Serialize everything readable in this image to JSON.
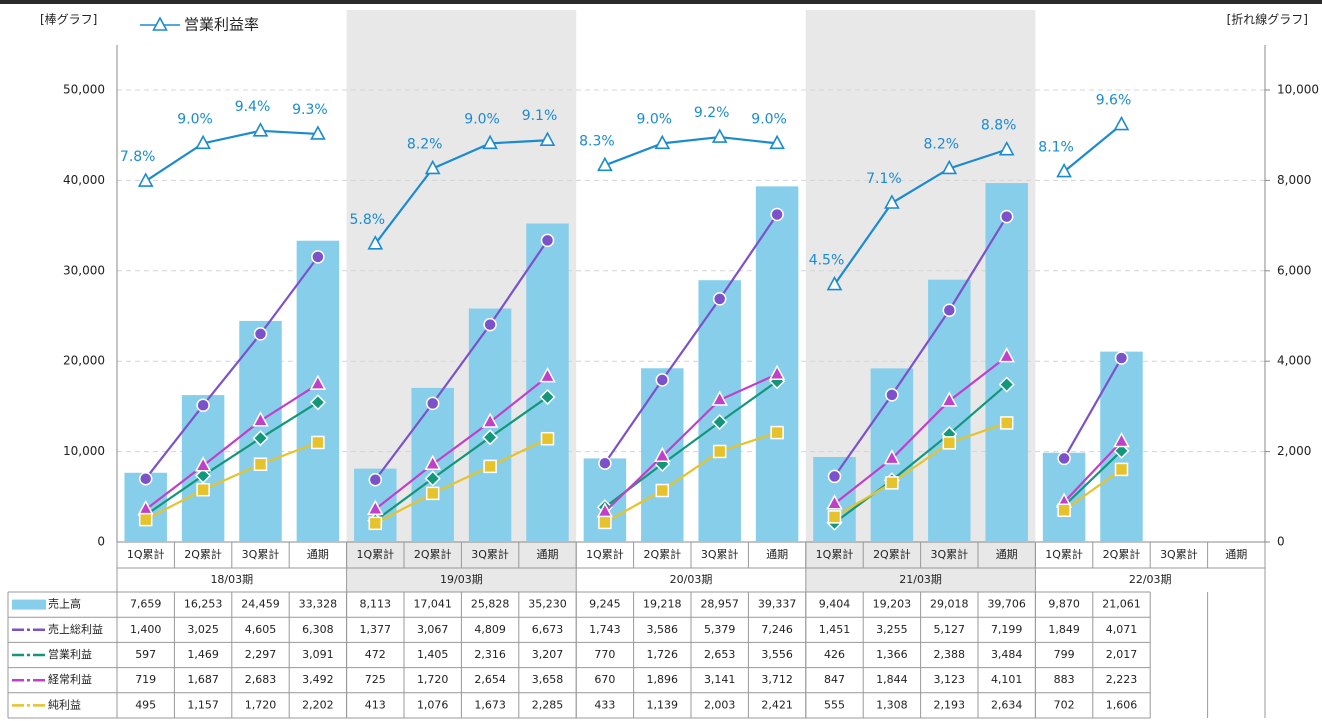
{
  "chart_data": {
    "type": "combo",
    "y_axis_title": "[棒グラフ]",
    "y2_axis_title": "[折れ線グラフ]",
    "groups": [
      "18/03期",
      "19/03期",
      "20/03期",
      "21/03期",
      "22/03期"
    ],
    "categories": [
      "1Q累計",
      "2Q累計",
      "3Q累計",
      "通期",
      "1Q累計",
      "2Q累計",
      "3Q累計",
      "通期",
      "1Q累計",
      "2Q累計",
      "3Q累計",
      "通期",
      "1Q累計",
      "2Q累計",
      "3Q累計",
      "通期",
      "1Q累計",
      "2Q累計",
      "3Q累計",
      "通期"
    ],
    "ylim": [
      0,
      50000
    ],
    "yticks": [
      0,
      {
        "value": 10000,
        "label": "10,000"
      },
      {
        "value": 20000,
        "label": "20,000"
      },
      {
        "value": 30000,
        "label": "30,000"
      },
      {
        "value": 40000,
        "label": "40,000"
      },
      {
        "value": 50000,
        "label": "50,000"
      }
    ],
    "y2lim": [
      0,
      10000
    ],
    "y2ticks": [
      0,
      {
        "value": 2000,
        "label": "2,000"
      },
      {
        "value": 4000,
        "label": "4,000"
      },
      {
        "value": 6000,
        "label": "6,000"
      },
      {
        "value": 8000,
        "label": "8,000"
      },
      {
        "value": 10000,
        "label": "10,000"
      }
    ],
    "y3lim": [
      -3.7,
      10.7
    ],
    "grid": true,
    "series": [
      {
        "name": "売上高",
        "type": "bar",
        "color": "#87ceeb",
        "values": [
          7659,
          16253,
          24459,
          33328,
          8113,
          17041,
          25828,
          35230,
          9245,
          19218,
          28957,
          39337,
          9404,
          19203,
          29018,
          39706,
          9870,
          21061,
          null,
          null
        ],
        "value_labels": [
          "7,659",
          "16,253",
          "24,459",
          "33,328",
          "8,113",
          "17,041",
          "25,828",
          "35,230",
          "9,245",
          "19,218",
          "28,957",
          "39,337",
          "9,404",
          "19,203",
          "29,018",
          "39,706",
          "9,870",
          "21,061",
          null,
          null
        ]
      },
      {
        "name": "売上総利益",
        "type": "line",
        "axis": "y2",
        "marker": "circle",
        "color": "#7b52c9",
        "values": [
          1400,
          3025,
          4605,
          6308,
          1377,
          3067,
          4809,
          6673,
          1743,
          3586,
          5379,
          7246,
          1451,
          3255,
          5127,
          7199,
          1849,
          4071,
          null,
          null
        ],
        "value_labels": [
          "1,400",
          "3,025",
          "4,605",
          "6,308",
          "1,377",
          "3,067",
          "4,809",
          "6,673",
          "1,743",
          "3,586",
          "5,379",
          "7,246",
          "1,451",
          "3,255",
          "5,127",
          "7,199",
          "1,849",
          "4,071",
          null,
          null
        ]
      },
      {
        "name": "営業利益",
        "type": "line",
        "axis": "y2",
        "marker": "diamond",
        "color": "#13977a",
        "values": [
          597,
          1469,
          2297,
          3091,
          472,
          1405,
          2316,
          3207,
          770,
          1726,
          2653,
          3556,
          426,
          1366,
          2388,
          3484,
          799,
          2017,
          null,
          null
        ],
        "value_labels": [
          "597",
          "1,469",
          "2,297",
          "3,091",
          "472",
          "1,405",
          "2,316",
          "3,207",
          "770",
          "1,726",
          "2,653",
          "3,556",
          "426",
          "1,366",
          "2,388",
          "3,484",
          "799",
          "2,017",
          null,
          null
        ]
      },
      {
        "name": "経常利益",
        "type": "line",
        "axis": "y2",
        "marker": "triangle",
        "color": "#c23fc9",
        "values": [
          719,
          1687,
          2683,
          3492,
          725,
          1720,
          2654,
          3658,
          670,
          1896,
          3141,
          3712,
          847,
          1844,
          3123,
          4101,
          883,
          2223,
          null,
          null
        ],
        "value_labels": [
          "719",
          "1,687",
          "2,683",
          "3,492",
          "725",
          "1,720",
          "2,654",
          "3,658",
          "670",
          "1,896",
          "3,141",
          "3,712",
          "847",
          "1,844",
          "3,123",
          "4,101",
          "883",
          "2,223",
          null,
          null
        ]
      },
      {
        "name": "純利益",
        "type": "line",
        "axis": "y2",
        "marker": "square",
        "color": "#e6c32c",
        "values": [
          495,
          1157,
          1720,
          2202,
          413,
          1076,
          1673,
          2285,
          433,
          1139,
          2003,
          2421,
          555,
          1308,
          2193,
          2634,
          702,
          1606,
          null,
          null
        ],
        "value_labels": [
          "495",
          "1,157",
          "1,720",
          "2,202",
          "413",
          "1,076",
          "1,673",
          "2,285",
          "433",
          "1,139",
          "2,003",
          "2,421",
          "555",
          "1,308",
          "2,193",
          "2,634",
          "702",
          "1,606",
          null,
          null
        ]
      },
      {
        "name": "営業利益率",
        "type": "line",
        "axis": "y3",
        "marker": "hollow-triangle",
        "color": "#1b8bd0",
        "values": [
          7.8,
          9.0,
          9.4,
          9.3,
          5.8,
          8.2,
          9.0,
          9.1,
          8.3,
          9.0,
          9.2,
          9.0,
          4.5,
          7.1,
          8.2,
          8.8,
          8.1,
          9.6,
          null,
          null
        ],
        "value_labels": [
          "7.8%",
          "9.0%",
          "9.4%",
          "9.3%",
          "5.8%",
          "8.2%",
          "9.0%",
          "9.1%",
          "8.3%",
          "9.0%",
          "9.2%",
          "9.0%",
          "4.5%",
          "7.1%",
          "8.2%",
          "8.8%",
          "8.1%",
          "9.6%",
          null,
          null
        ]
      }
    ]
  }
}
